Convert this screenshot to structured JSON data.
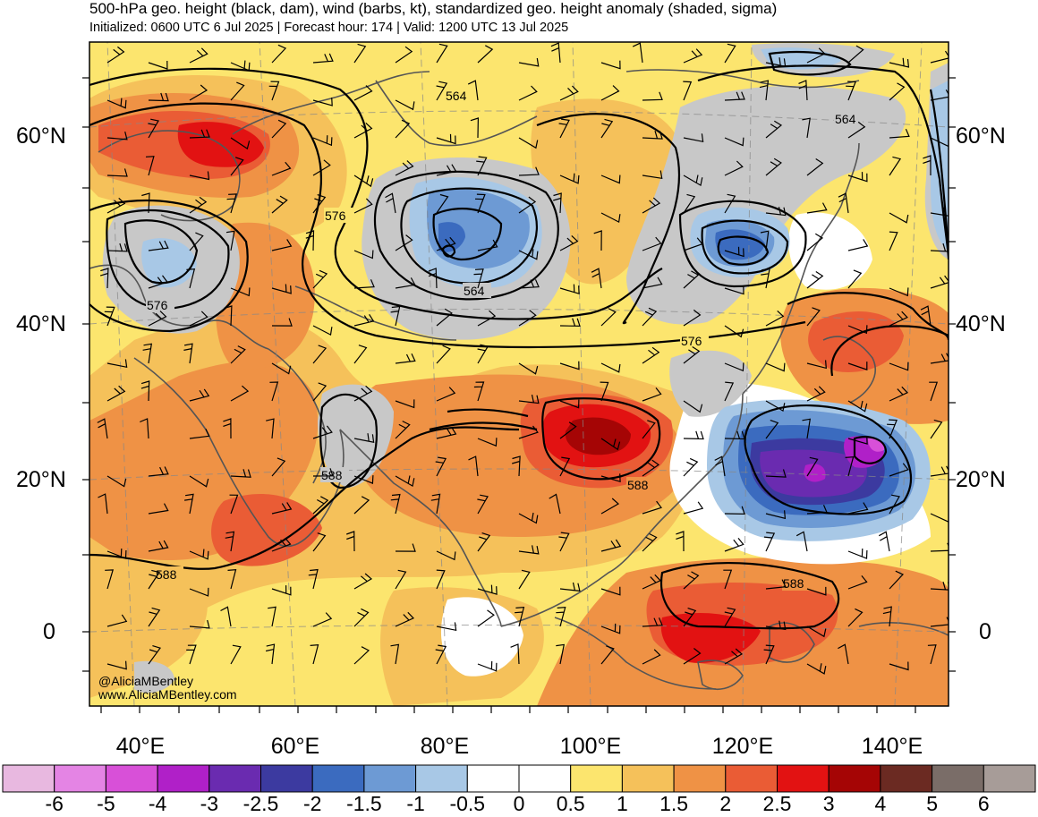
{
  "title": "500-hPa geo. height (black, dam), wind (barbs, kt), standardized geo. height anomaly (shaded, sigma)",
  "subtitle": "Initialized: 0600 UTC 6 Jul 2025 | Forecast hour: 174 | Valid: 1200 UTC 13 Jul 2025",
  "credit": {
    "handle": "@AliciaMBentley",
    "website": "www.AliciaMBentley.com"
  },
  "axes": {
    "lat_left": [
      "60°N",
      "40°N",
      "20°N",
      "0"
    ],
    "lat_right": [
      "60°N",
      "40°N",
      "20°N",
      "0"
    ],
    "lon_bottom": [
      "40°E",
      "60°E",
      "80°E",
      "100°E",
      "120°E",
      "140°E"
    ]
  },
  "contour_labels": [
    "564",
    "564",
    "564",
    "576",
    "576",
    "576",
    "588",
    "588",
    "588",
    "588"
  ],
  "colorbar": {
    "labels": [
      "-6",
      "-5",
      "-4",
      "-3",
      "-2.5",
      "-2",
      "-1.5",
      "-1",
      "-0.5",
      "0",
      "0.5",
      "1",
      "1.5",
      "2",
      "2.5",
      "3",
      "4",
      "5",
      "6"
    ],
    "colors": [
      "#e8b8e0",
      "#e484e4",
      "#d850d8",
      "#b020c8",
      "#6a2bb0",
      "#3c3aa0",
      "#3b6bbf",
      "#6d9ad4",
      "#a8c8e6",
      "#ffffff",
      "#ffffff",
      "#fce56e",
      "#f5c15a",
      "#ef9245",
      "#ea5c35",
      "#e21212",
      "#a50505",
      "#6b2a22",
      "#7a6d68",
      "#a79c98"
    ]
  },
  "colors": {
    "land_outline": "#555555",
    "contour": "#000000",
    "below_threshold": "#c8c8c8"
  }
}
